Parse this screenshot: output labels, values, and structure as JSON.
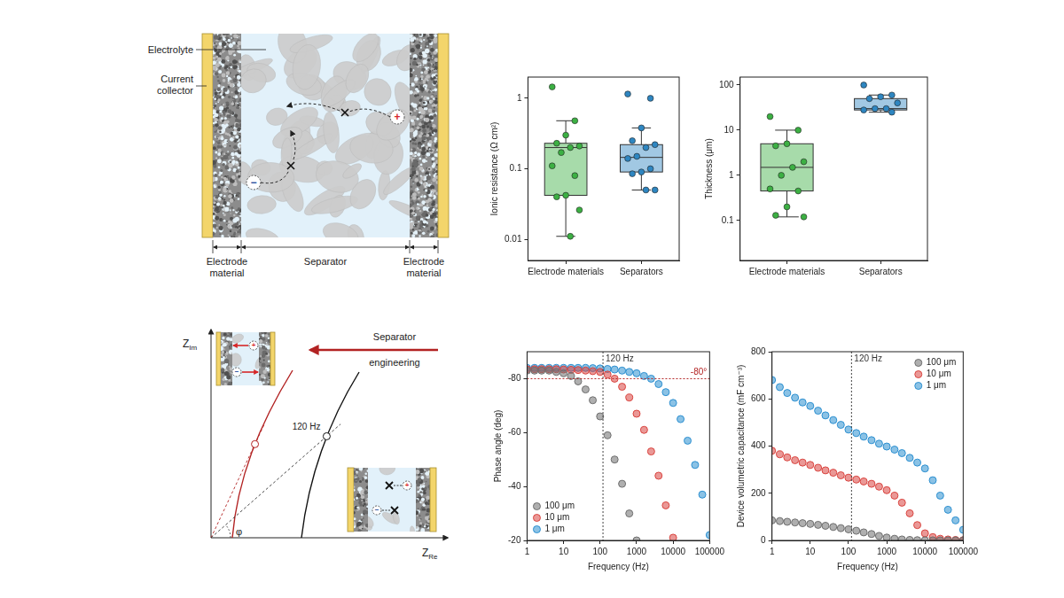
{
  "diagrams": {
    "cell_schematic": {
      "electrolyte": "Electrolyte",
      "current_collector": "Current collector",
      "electrode_left": "Electrode material",
      "separator": "Separator",
      "electrode_right": "Electrode material"
    },
    "ions": {
      "cation": "+",
      "anion": "−"
    },
    "impedance_sketch": {
      "y_axis": {
        "text": "Z",
        "sub": "Im"
      },
      "x_axis": {
        "text": "Z",
        "sub": "Re"
      },
      "arrow_label": [
        "Separator",
        "engineering"
      ],
      "point_label": "120 Hz",
      "angle_label": "φ"
    }
  },
  "chart_data": [
    {
      "type": "box",
      "ylabel": "Ionic resistance (Ω cm²)",
      "categories": [
        "Electrode materials",
        "Separators"
      ],
      "log": "y",
      "ylim": [
        0.005,
        2
      ],
      "yticks": [
        0.01,
        0.1,
        1
      ],
      "grid": false,
      "marker": "circle",
      "boxes": [
        {
          "color": "#3cb043",
          "whisker_low": 0.011,
          "q1": 0.042,
          "median": 0.2,
          "q3": 0.23,
          "whisker_high": 0.48,
          "points": [
            1.45,
            0.48,
            0.3,
            0.23,
            0.21,
            0.2,
            0.17,
            0.11,
            0.08,
            0.042,
            0.04,
            0.026,
            0.011
          ]
        },
        {
          "color": "#2e86c1",
          "whisker_low": 0.05,
          "q1": 0.09,
          "median": 0.145,
          "q3": 0.22,
          "whisker_high": 0.38,
          "points": [
            1.15,
            1.0,
            0.38,
            0.25,
            0.22,
            0.2,
            0.15,
            0.14,
            0.1,
            0.09,
            0.085,
            0.05,
            0.05
          ]
        }
      ]
    },
    {
      "type": "box",
      "ylabel": "Thickness (μm)",
      "categories": [
        "Electrode materials",
        "Separators"
      ],
      "log": "y",
      "ylim": [
        0.013,
        150
      ],
      "yticks": [
        0.1,
        1,
        10,
        100
      ],
      "grid": false,
      "marker": "circle",
      "boxes": [
        {
          "color": "#3cb043",
          "whisker_low": 0.12,
          "q1": 0.45,
          "median": 1.5,
          "q3": 5,
          "whisker_high": 10,
          "points": [
            20,
            10,
            5,
            4.5,
            2,
            1.5,
            1,
            0.5,
            0.45,
            0.2,
            0.13,
            0.12
          ]
        },
        {
          "color": "#2e86c1",
          "whisker_low": 25,
          "q1": 28,
          "median": 30,
          "q3": 50,
          "whisker_high": 60,
          "points": [
            100,
            60,
            55,
            50,
            40,
            30,
            30,
            28,
            25
          ]
        }
      ]
    },
    {
      "type": "scatter",
      "xlabel": "Frequency (Hz)",
      "ylabel": "Phase angle (deg)",
      "log": "x",
      "x": [
        1,
        1.6,
        2.5,
        4,
        6.3,
        10,
        16,
        25,
        40,
        63,
        100,
        160,
        250,
        400,
        630,
        1000,
        1600,
        2500,
        4000,
        6300,
        10000,
        16000,
        25000,
        40000,
        63000,
        100000
      ],
      "xlim": [
        1,
        100000
      ],
      "xticks": [
        1,
        10,
        100,
        1000,
        10000,
        100000
      ],
      "ylim": [
        -20,
        -90
      ],
      "yticks": [
        -80,
        -60,
        -40,
        -20
      ],
      "grid": false,
      "legend": "lower left",
      "marker": "circle",
      "line_style": "none",
      "series": [
        {
          "name": "100 μm",
          "color": "#6e6e6e",
          "values": [
            -83,
            -83,
            -83,
            -83,
            -82.5,
            -82,
            -81,
            -79,
            -76,
            -72,
            -66,
            -59,
            -50,
            -41,
            -30,
            -20,
            null,
            null,
            null,
            null,
            null,
            null,
            null,
            null,
            null,
            null
          ]
        },
        {
          "name": "10 μm",
          "color": "#d9443f",
          "values": [
            -83.5,
            -83.5,
            -83.5,
            -83.5,
            -83.5,
            -83.4,
            -83.3,
            -83.2,
            -83,
            -82.8,
            -82.5,
            -81.5,
            -80,
            -77,
            -73,
            -67,
            -61,
            -53,
            -44,
            -33,
            -21,
            null,
            null,
            null,
            null,
            null
          ]
        },
        {
          "name": "1 μm",
          "color": "#2c8fd0",
          "values": [
            -84,
            -84,
            -84,
            -84,
            -84,
            -84,
            -84,
            -84,
            -84,
            -83.9,
            -83.8,
            -83.6,
            -83.4,
            -83,
            -82.5,
            -82,
            -81,
            -80,
            -78,
            -75,
            -71,
            -65,
            -57,
            -48,
            -37,
            -22
          ]
        }
      ],
      "annotations": [
        {
          "type": "vline",
          "x": 120,
          "label": "120 Hz"
        },
        {
          "type": "hline",
          "y": -80,
          "label": "-80°",
          "color": "#b22222"
        }
      ]
    },
    {
      "type": "scatter",
      "xlabel": "Frequency (Hz)",
      "ylabel": "Device volumetric capacitance (mF cm⁻³)",
      "log": "x",
      "x": [
        1,
        1.6,
        2.5,
        4,
        6.3,
        10,
        16,
        25,
        40,
        63,
        100,
        160,
        250,
        400,
        630,
        1000,
        1600,
        2500,
        4000,
        6300,
        10000,
        16000,
        25000,
        40000,
        63000,
        100000
      ],
      "xlim": [
        1,
        100000
      ],
      "xticks": [
        1,
        10,
        100,
        1000,
        10000,
        100000
      ],
      "ylim": [
        0,
        800
      ],
      "yticks": [
        0,
        200,
        400,
        600,
        800
      ],
      "grid": false,
      "legend": "upper right",
      "marker": "circle",
      "line_style": "none",
      "series": [
        {
          "name": "100 μm",
          "color": "#6e6e6e",
          "values": [
            85,
            82,
            79,
            76,
            73,
            70,
            66,
            62,
            57,
            52,
            47,
            41,
            34,
            27,
            19,
            12,
            7,
            4,
            2,
            1,
            0.5,
            0.3,
            0.2,
            0.1,
            0.1,
            0.1
          ]
        },
        {
          "name": "10 μm",
          "color": "#d9443f",
          "values": [
            380,
            365,
            352,
            340,
            330,
            320,
            308,
            297,
            287,
            276,
            266,
            258,
            250,
            240,
            228,
            213,
            190,
            160,
            115,
            65,
            30,
            14,
            7,
            4,
            2,
            1
          ]
        },
        {
          "name": "1 μm",
          "color": "#2c8fd0",
          "values": [
            680,
            650,
            625,
            605,
            585,
            570,
            550,
            530,
            510,
            490,
            470,
            455,
            440,
            425,
            410,
            398,
            385,
            370,
            350,
            330,
            305,
            255,
            190,
            130,
            85,
            45
          ]
        }
      ],
      "annotations": [
        {
          "type": "vline",
          "x": 120,
          "label": "120 Hz"
        }
      ]
    }
  ]
}
